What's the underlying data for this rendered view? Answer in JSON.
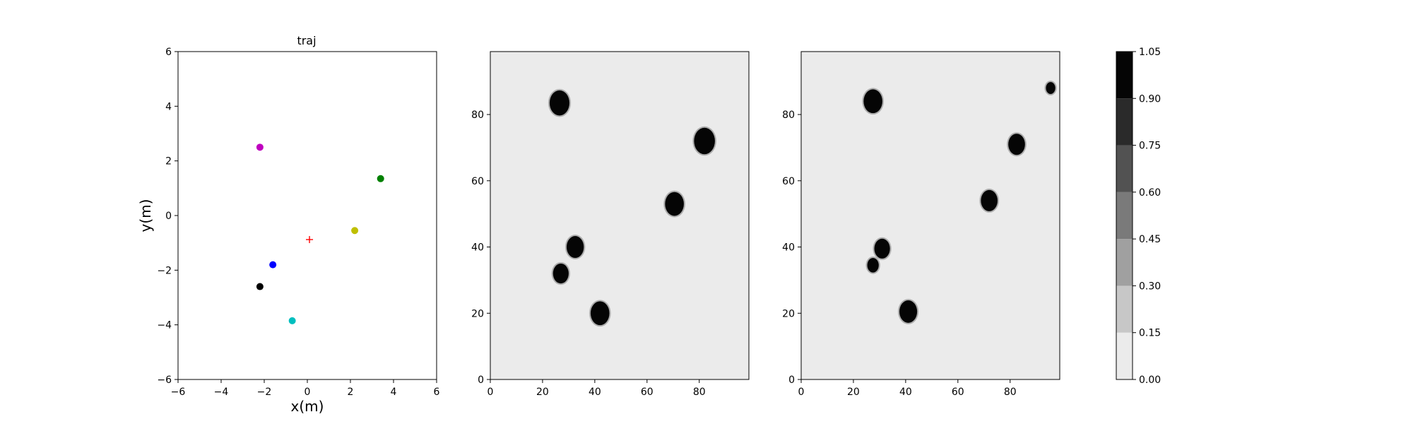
{
  "chart_data": [
    {
      "type": "scatter",
      "title": "traj",
      "xlabel": "x(m)",
      "ylabel": "y(m)",
      "xlim": [
        -6,
        6
      ],
      "ylim": [
        -6,
        6
      ],
      "xticks": [
        "−6",
        "−4",
        "−2",
        "0",
        "2",
        "4",
        "6"
      ],
      "yticks": [
        "−6",
        "−4",
        "−2",
        "0",
        "2",
        "4",
        "6"
      ],
      "grid": false,
      "points": [
        {
          "x": -2.2,
          "y": 2.5,
          "color": "#bf00bf",
          "marker": "circle"
        },
        {
          "x": 3.4,
          "y": 1.35,
          "color": "#008000",
          "marker": "circle"
        },
        {
          "x": 2.2,
          "y": -0.55,
          "color": "#bfbf00",
          "marker": "circle"
        },
        {
          "x": -1.6,
          "y": -1.8,
          "color": "#0000ff",
          "marker": "circle"
        },
        {
          "x": -2.2,
          "y": -2.6,
          "color": "#000000",
          "marker": "circle"
        },
        {
          "x": -0.7,
          "y": -3.85,
          "color": "#00bfbf",
          "marker": "circle"
        },
        {
          "x": 0.1,
          "y": -0.88,
          "color": "#ff0000",
          "marker": "plus"
        }
      ]
    },
    {
      "type": "heatmap",
      "xlim": [
        0,
        99
      ],
      "ylim": [
        0,
        99
      ],
      "xticks": [
        "0",
        "20",
        "40",
        "60",
        "80"
      ],
      "yticks": [
        "0",
        "20",
        "40",
        "60",
        "80"
      ],
      "background_level": 0.05,
      "blobs": [
        {
          "x": 26.5,
          "y": 83.5,
          "r": 3.8
        },
        {
          "x": 82,
          "y": 72,
          "r": 4.0
        },
        {
          "x": 70.5,
          "y": 53,
          "r": 3.6
        },
        {
          "x": 32.5,
          "y": 40,
          "r": 3.3
        },
        {
          "x": 27,
          "y": 32,
          "r": 3.0
        },
        {
          "x": 42,
          "y": 20,
          "r": 3.6
        }
      ]
    },
    {
      "type": "heatmap",
      "xlim": [
        0,
        99
      ],
      "ylim": [
        0,
        99
      ],
      "xticks": [
        "0",
        "20",
        "40",
        "60",
        "80"
      ],
      "yticks": [
        "0",
        "20",
        "40",
        "60",
        "80"
      ],
      "background_level": 0.05,
      "blobs": [
        {
          "x": 27.5,
          "y": 84,
          "r": 3.6
        },
        {
          "x": 95.5,
          "y": 88,
          "r": 1.8
        },
        {
          "x": 82.5,
          "y": 71,
          "r": 3.2
        },
        {
          "x": 72,
          "y": 54,
          "r": 3.2
        },
        {
          "x": 31,
          "y": 39.5,
          "r": 3.0
        },
        {
          "x": 27.5,
          "y": 34.5,
          "r": 2.2
        },
        {
          "x": 41,
          "y": 20.5,
          "r": 3.4
        }
      ]
    },
    {
      "type": "colorbar",
      "levels": [
        0.0,
        0.15,
        0.3,
        0.45,
        0.6,
        0.75,
        0.9,
        1.05
      ],
      "labels": [
        "0.00",
        "0.15",
        "0.30",
        "0.45",
        "0.60",
        "0.75",
        "0.90",
        "1.05"
      ],
      "colors": [
        "#ebebeb",
        "#c7c7c7",
        "#a0a0a0",
        "#7a7a7a",
        "#525252",
        "#2a2a2a",
        "#050505"
      ]
    }
  ]
}
